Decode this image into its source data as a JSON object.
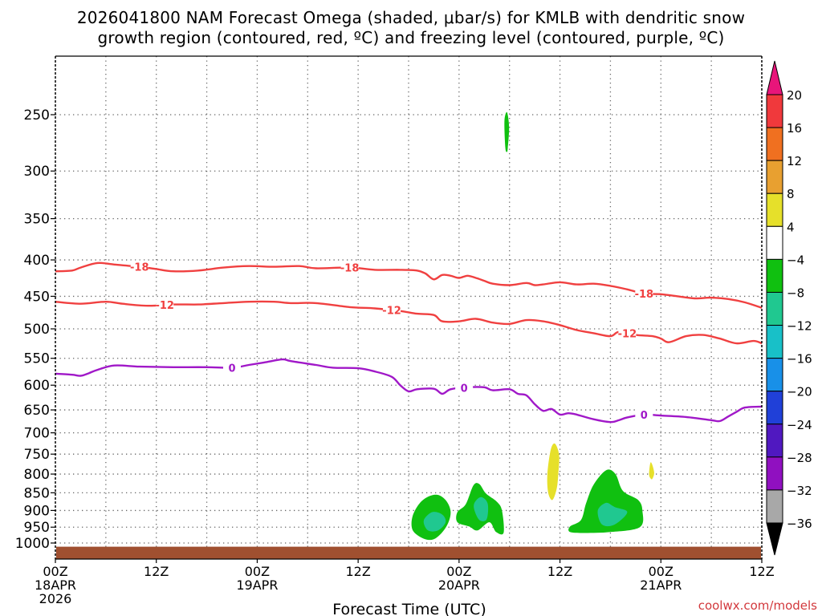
{
  "title": {
    "line1": "2026041800 NAM Forecast Omega (shaded, μbar/s) for KMLB with dendritic snow",
    "line2": "growth region (contoured, red, ºC) and freezing level (contoured, purple, ºC)"
  },
  "credit": "coolwx.com/models",
  "chart_data": {
    "type": "contour",
    "xlabel": "Forecast Time (UTC)",
    "ylabel": "",
    "y_scale": "log-pressure (inverted)",
    "ylim_hpa": [
      1050,
      200
    ],
    "x_range_hours": [
      0,
      84
    ],
    "x_ticks": [
      {
        "hour": 0,
        "lines": [
          "00Z",
          "18APR",
          "2026"
        ]
      },
      {
        "hour": 12,
        "lines": [
          "12Z"
        ]
      },
      {
        "hour": 24,
        "lines": [
          "00Z",
          "19APR"
        ]
      },
      {
        "hour": 36,
        "lines": [
          "12Z"
        ]
      },
      {
        "hour": 48,
        "lines": [
          "00Z",
          "20APR"
        ]
      },
      {
        "hour": 60,
        "lines": [
          "12Z"
        ]
      },
      {
        "hour": 72,
        "lines": [
          "00Z",
          "21APR"
        ]
      },
      {
        "hour": 84,
        "lines": [
          "12Z"
        ]
      }
    ],
    "x_minor_grid_hours": [
      6,
      18,
      30,
      42,
      54,
      66,
      78
    ],
    "y_ticks_hpa": [
      250,
      300,
      350,
      400,
      450,
      500,
      550,
      600,
      650,
      700,
      750,
      800,
      850,
      900,
      950,
      1000
    ],
    "grid": true,
    "colorbar": {
      "unit": "μbar/s",
      "labels": [
        "20",
        "16",
        "12",
        "8",
        "4",
        "−4",
        "−8",
        "−12",
        "−16",
        "−20",
        "−24",
        "−28",
        "−32",
        "−36"
      ],
      "colors": [
        "#e8157a",
        "#f0393c",
        "#f07020",
        "#e8a030",
        "#e6e02a",
        "#ffffff",
        "#10c010",
        "#20c890",
        "#18c0c8",
        "#1890e8",
        "#2040d8",
        "#5018c0",
        "#9010c0",
        "#a8a8a8",
        "#000000"
      ]
    },
    "contour_lines": [
      {
        "name": "-18",
        "color": "#f04040",
        "label_hours": [
          10,
          35,
          70
        ],
        "points": [
          [
            0,
            415
          ],
          [
            2,
            414
          ],
          [
            3,
            410
          ],
          [
            5,
            404
          ],
          [
            7,
            406
          ],
          [
            10,
            409
          ],
          [
            12,
            412
          ],
          [
            14,
            415
          ],
          [
            17,
            414
          ],
          [
            20,
            410
          ],
          [
            23,
            408
          ],
          [
            26,
            409
          ],
          [
            29,
            408
          ],
          [
            31,
            411
          ],
          [
            35,
            410
          ],
          [
            38,
            413
          ],
          [
            41,
            413
          ],
          [
            43,
            414
          ],
          [
            44,
            418
          ],
          [
            45,
            426
          ],
          [
            46,
            420
          ],
          [
            47,
            421
          ],
          [
            48,
            424
          ],
          [
            49,
            421
          ],
          [
            50,
            424
          ],
          [
            51,
            428
          ],
          [
            52,
            432
          ],
          [
            54,
            434
          ],
          [
            56,
            431
          ],
          [
            57,
            434
          ],
          [
            58,
            433
          ],
          [
            60,
            430
          ],
          [
            62,
            433
          ],
          [
            64,
            432
          ],
          [
            66,
            435
          ],
          [
            68,
            440
          ],
          [
            70,
            446
          ],
          [
            72,
            447
          ],
          [
            74,
            450
          ],
          [
            76,
            453
          ],
          [
            78,
            452
          ],
          [
            80,
            454
          ],
          [
            82,
            459
          ],
          [
            84,
            467
          ]
        ]
      },
      {
        "name": "-12",
        "color": "#f04040",
        "label_hours": [
          13,
          40,
          68
        ],
        "points": [
          [
            0,
            458
          ],
          [
            3,
            461
          ],
          [
            6,
            458
          ],
          [
            8,
            461
          ],
          [
            11,
            464
          ],
          [
            14,
            462
          ],
          [
            17,
            462
          ],
          [
            20,
            460
          ],
          [
            23,
            458
          ],
          [
            26,
            458
          ],
          [
            28,
            460
          ],
          [
            31,
            460
          ],
          [
            35,
            466
          ],
          [
            38,
            468
          ],
          [
            41,
            472
          ],
          [
            43,
            476
          ],
          [
            45,
            478
          ],
          [
            46,
            488
          ],
          [
            48,
            488
          ],
          [
            50,
            484
          ],
          [
            52,
            490
          ],
          [
            54,
            492
          ],
          [
            56,
            486
          ],
          [
            58,
            488
          ],
          [
            60,
            494
          ],
          [
            62,
            502
          ],
          [
            64,
            507
          ],
          [
            66,
            512
          ],
          [
            67,
            505
          ],
          [
            69,
            510
          ],
          [
            71,
            512
          ],
          [
            72,
            516
          ],
          [
            73,
            522
          ],
          [
            75,
            512
          ],
          [
            77,
            510
          ],
          [
            79,
            516
          ],
          [
            81,
            524
          ],
          [
            83,
            520
          ],
          [
            84,
            524
          ]
        ]
      },
      {
        "name": "0",
        "color": "#a018c8",
        "label_hours": [
          21,
          48.6,
          70
        ],
        "points": [
          [
            0,
            578
          ],
          [
            2,
            580
          ],
          [
            3,
            582
          ],
          [
            4,
            577
          ],
          [
            5,
            571
          ],
          [
            7,
            563
          ],
          [
            10,
            565
          ],
          [
            14,
            566
          ],
          [
            18,
            566
          ],
          [
            21,
            567
          ],
          [
            23,
            562
          ],
          [
            25,
            557
          ],
          [
            27,
            552
          ],
          [
            28,
            555
          ],
          [
            31,
            562
          ],
          [
            33,
            567
          ],
          [
            36,
            568
          ],
          [
            38,
            574
          ],
          [
            40,
            584
          ],
          [
            41,
            600
          ],
          [
            42,
            612
          ],
          [
            43,
            608
          ],
          [
            45,
            607
          ],
          [
            46,
            617
          ],
          [
            47,
            608
          ],
          [
            49,
            604
          ],
          [
            51,
            604
          ],
          [
            52,
            610
          ],
          [
            54,
            608
          ],
          [
            55,
            617
          ],
          [
            56,
            620
          ],
          [
            57,
            638
          ],
          [
            58,
            652
          ],
          [
            59,
            648
          ],
          [
            60,
            660
          ],
          [
            61,
            657
          ],
          [
            62,
            660
          ],
          [
            64,
            670
          ],
          [
            66,
            676
          ],
          [
            67,
            672
          ],
          [
            68,
            666
          ],
          [
            70,
            660
          ],
          [
            72,
            662
          ],
          [
            75,
            665
          ],
          [
            78,
            672
          ],
          [
            79,
            674
          ],
          [
            80,
            664
          ],
          [
            81,
            654
          ],
          [
            82,
            645
          ],
          [
            84,
            643
          ]
        ]
      }
    ],
    "shaded_regions": [
      {
        "level": "-4",
        "color": "#10c010",
        "polygon": [
          [
            42.5,
            915
          ],
          [
            43.6,
            872
          ],
          [
            45.2,
            855
          ],
          [
            46.4,
            870
          ],
          [
            47,
            905
          ],
          [
            46.5,
            948
          ],
          [
            45.2,
            985
          ],
          [
            43.9,
            987
          ],
          [
            42.5,
            960
          ]
        ]
      },
      {
        "level": "-8",
        "color": "#20c890",
        "polygon": [
          [
            43.8,
            930
          ],
          [
            44.8,
            905
          ],
          [
            46,
            912
          ],
          [
            46.4,
            935
          ],
          [
            45.5,
            960
          ],
          [
            44.3,
            960
          ]
        ]
      },
      {
        "level": "-4",
        "color": "#10c010",
        "polygon": [
          [
            47.8,
            905
          ],
          [
            48.8,
            882
          ],
          [
            49.7,
            830
          ],
          [
            50.4,
            826
          ],
          [
            51.2,
            852
          ],
          [
            52.5,
            875
          ],
          [
            53.1,
            900
          ],
          [
            53.3,
            967
          ],
          [
            52.4,
            965
          ],
          [
            51.6,
            935
          ],
          [
            50.2,
            960
          ],
          [
            49.2,
            948
          ],
          [
            47.8,
            935
          ]
        ]
      },
      {
        "level": "-8",
        "color": "#20c890",
        "polygon": [
          [
            49.8,
            880
          ],
          [
            50.6,
            862
          ],
          [
            51.4,
            880
          ],
          [
            51.3,
            925
          ],
          [
            50.5,
            930
          ],
          [
            49.9,
            905
          ]
        ]
      },
      {
        "level": "-4",
        "color": "#10c010",
        "polygon": [
          [
            61.2,
            948
          ],
          [
            62.5,
            928
          ],
          [
            63.1,
            880
          ],
          [
            64,
            828
          ],
          [
            65.5,
            790
          ],
          [
            66.6,
            800
          ],
          [
            67.5,
            845
          ],
          [
            69.3,
            870
          ],
          [
            69.8,
            900
          ],
          [
            69.5,
            950
          ],
          [
            66,
            965
          ],
          [
            63,
            968
          ],
          [
            61.2,
            965
          ]
        ]
      },
      {
        "level": "-8",
        "color": "#20c890",
        "polygon": [
          [
            64.5,
            900
          ],
          [
            65.5,
            878
          ],
          [
            66.5,
            890
          ],
          [
            68,
            905
          ],
          [
            66.5,
            942
          ],
          [
            65,
            942
          ]
        ]
      },
      {
        "level": "-4",
        "color": "#10c010",
        "polygon": [
          [
            53.4,
            255
          ],
          [
            53.7,
            248
          ],
          [
            53.95,
            260
          ],
          [
            53.8,
            278
          ],
          [
            53.7,
            282
          ],
          [
            53.5,
            278
          ]
        ]
      },
      {
        "level": "4",
        "color": "#e6e02a",
        "polygon": [
          [
            58.5,
            800
          ],
          [
            58.9,
            740
          ],
          [
            59.4,
            725
          ],
          [
            59.9,
            752
          ],
          [
            59.8,
            800
          ],
          [
            59.6,
            840
          ],
          [
            59.1,
            870
          ],
          [
            58.6,
            850
          ]
        ]
      },
      {
        "level": "4",
        "color": "#e6e02a",
        "polygon": [
          [
            70.6,
            800
          ],
          [
            70.8,
            770
          ],
          [
            71.2,
            795
          ],
          [
            71,
            812
          ],
          [
            70.8,
            812
          ]
        ]
      }
    ],
    "terrain": {
      "color": "#a05030",
      "top_hpa": 1012
    }
  }
}
